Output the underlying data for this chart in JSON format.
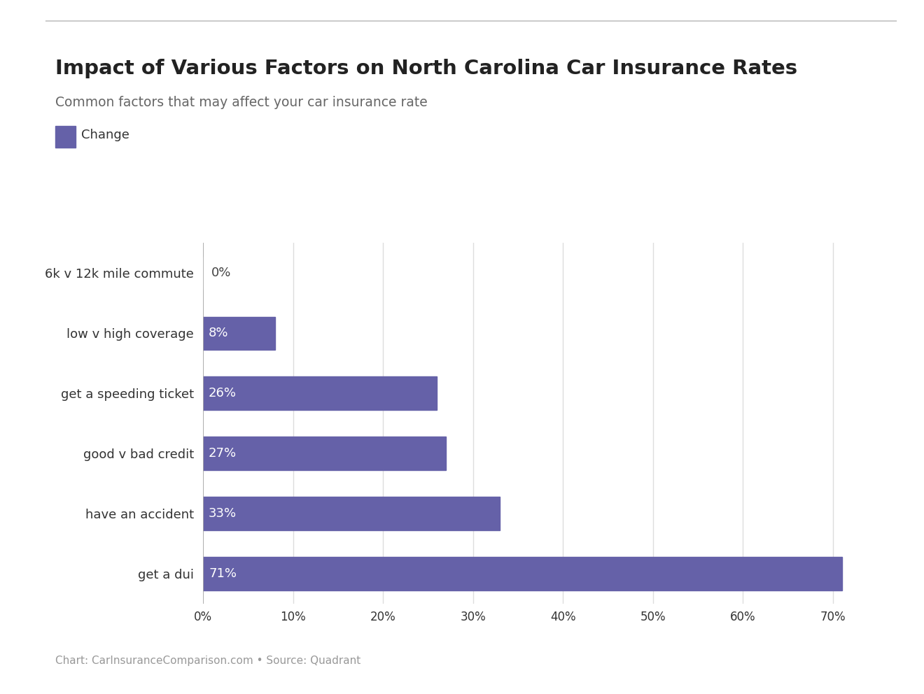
{
  "title": "Impact of Various Factors on North Carolina Car Insurance Rates",
  "subtitle": "Common factors that may affect your car insurance rate",
  "legend_label": "Change",
  "categories": [
    "get a dui",
    "have an accident",
    "good v bad credit",
    "get a speeding ticket",
    "low v high coverage",
    "6k v 12k mile commute"
  ],
  "values": [
    71,
    33,
    27,
    26,
    8,
    0
  ],
  "bar_color": "#6561a8",
  "text_color_inside": "#ffffff",
  "text_color_outside": "#444444",
  "label_color": "#333333",
  "title_color": "#222222",
  "subtitle_color": "#666666",
  "footer_text": "Chart: CarInsuranceComparison.com • Source: Quadrant",
  "footer_color": "#999999",
  "background_color": "#ffffff",
  "grid_color": "#dddddd",
  "xlim": [
    0,
    75
  ],
  "xtick_values": [
    0,
    10,
    20,
    30,
    40,
    50,
    60,
    70
  ],
  "top_line_color": "#cccccc",
  "bar_height": 0.55
}
